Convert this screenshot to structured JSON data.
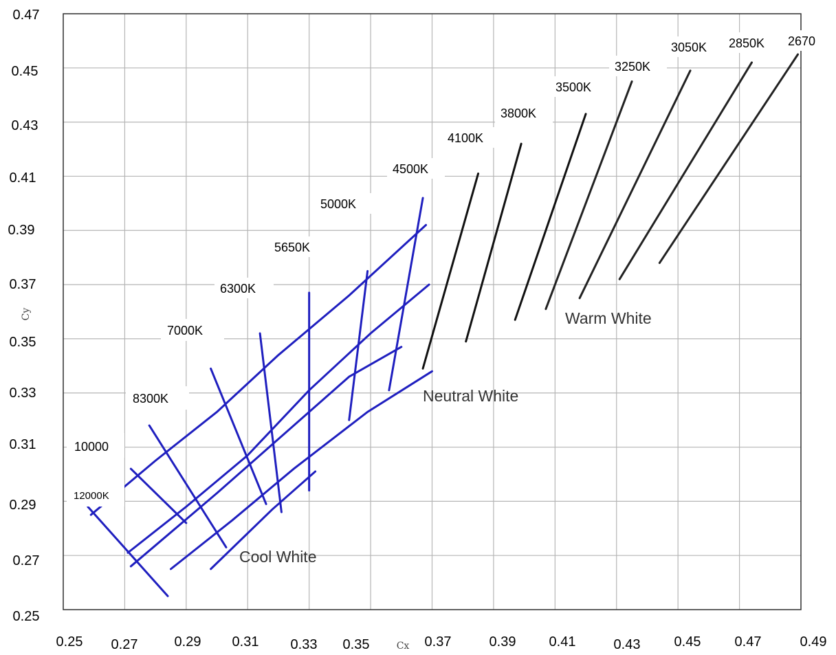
{
  "chart_data": {
    "type": "line",
    "xlabel": "Cx",
    "ylabel": "Cy",
    "xlim": [
      0.25,
      0.49
    ],
    "ylim": [
      0.25,
      0.47
    ],
    "x_ticks": [
      "0.25",
      "0.27",
      "0.29",
      "0.31",
      "0.33",
      "0.35",
      "0.37",
      "0.39",
      "0.41",
      "0.43",
      "0.45",
      "0.47",
      "0.49"
    ],
    "y_ticks": [
      "0.25",
      "0.27",
      "0.29",
      "0.31",
      "0.33",
      "0.35",
      "0.37",
      "0.39",
      "0.41",
      "0.43",
      "0.45",
      "0.47"
    ],
    "grid": true,
    "colors": {
      "cool": "#1f1fbf",
      "neutral": "#111111",
      "warm": "#f07a30",
      "grid": "#b5b5b5"
    },
    "cct_labels": [
      "12000K",
      "10000",
      "8300K",
      "7000K",
      "6300K",
      "5650K",
      "5000K",
      "4500K",
      "4100K",
      "3800K",
      "3500K",
      "3250K",
      "3050K",
      "2850K",
      "2670"
    ],
    "regions": [
      "Cool White",
      "Neutral White",
      "Warm White"
    ],
    "cct_lines": [
      {
        "group": "cool",
        "pts": [
          [
            0.258,
            0.288
          ],
          [
            0.284,
            0.255
          ]
        ]
      },
      {
        "group": "cool",
        "pts": [
          [
            0.272,
            0.302
          ],
          [
            0.29,
            0.282
          ]
        ]
      },
      {
        "group": "cool",
        "pts": [
          [
            0.278,
            0.318
          ],
          [
            0.303,
            0.273
          ]
        ]
      },
      {
        "group": "cool",
        "pts": [
          [
            0.298,
            0.339
          ],
          [
            0.316,
            0.289
          ]
        ]
      },
      {
        "group": "cool",
        "pts": [
          [
            0.314,
            0.352
          ],
          [
            0.321,
            0.286
          ]
        ]
      },
      {
        "group": "cool",
        "pts": [
          [
            0.33,
            0.367
          ],
          [
            0.33,
            0.294
          ]
        ]
      },
      {
        "group": "cool",
        "pts": [
          [
            0.349,
            0.375
          ],
          [
            0.343,
            0.32
          ]
        ]
      },
      {
        "group": "cool",
        "pts": [
          [
            0.367,
            0.402
          ],
          [
            0.356,
            0.331
          ]
        ]
      },
      {
        "group": "neutral",
        "pts": [
          [
            0.385,
            0.411
          ],
          [
            0.367,
            0.339
          ]
        ]
      },
      {
        "group": "neutral",
        "pts": [
          [
            0.399,
            0.422
          ],
          [
            0.381,
            0.349
          ]
        ]
      },
      {
        "group": "neutral",
        "pts": [
          [
            0.42,
            0.433
          ],
          [
            0.397,
            0.357
          ]
        ]
      },
      {
        "group": "warm",
        "pts": [
          [
            0.435,
            0.445
          ],
          [
            0.407,
            0.361
          ]
        ]
      },
      {
        "group": "warm",
        "pts": [
          [
            0.454,
            0.449
          ],
          [
            0.418,
            0.365
          ]
        ]
      },
      {
        "group": "warm",
        "pts": [
          [
            0.474,
            0.452
          ],
          [
            0.431,
            0.372
          ]
        ]
      },
      {
        "group": "warm",
        "pts": [
          [
            0.489,
            0.455
          ],
          [
            0.444,
            0.378
          ]
        ]
      }
    ],
    "band_lines": [
      {
        "group": "cool",
        "pts": [
          [
            0.259,
            0.285
          ],
          [
            0.28,
            0.305
          ],
          [
            0.3,
            0.323
          ],
          [
            0.32,
            0.344
          ],
          [
            0.343,
            0.366
          ],
          [
            0.368,
            0.392
          ]
        ]
      },
      {
        "group": "cool",
        "pts": [
          [
            0.271,
            0.271
          ],
          [
            0.29,
            0.288
          ],
          [
            0.31,
            0.307
          ],
          [
            0.33,
            0.331
          ],
          [
            0.35,
            0.352
          ],
          [
            0.369,
            0.37
          ]
        ]
      },
      {
        "group": "cool",
        "pts": [
          [
            0.272,
            0.266
          ],
          [
            0.3,
            0.293
          ],
          [
            0.322,
            0.315
          ],
          [
            0.343,
            0.336
          ],
          [
            0.36,
            0.347
          ]
        ]
      },
      {
        "group": "cool",
        "pts": [
          [
            0.285,
            0.265
          ],
          [
            0.305,
            0.283
          ],
          [
            0.325,
            0.302
          ],
          [
            0.349,
            0.323
          ],
          [
            0.37,
            0.338
          ]
        ]
      },
      {
        "group": "cool",
        "pts": [
          [
            0.298,
            0.265
          ],
          [
            0.318,
            0.287
          ],
          [
            0.332,
            0.301
          ]
        ]
      }
    ]
  }
}
